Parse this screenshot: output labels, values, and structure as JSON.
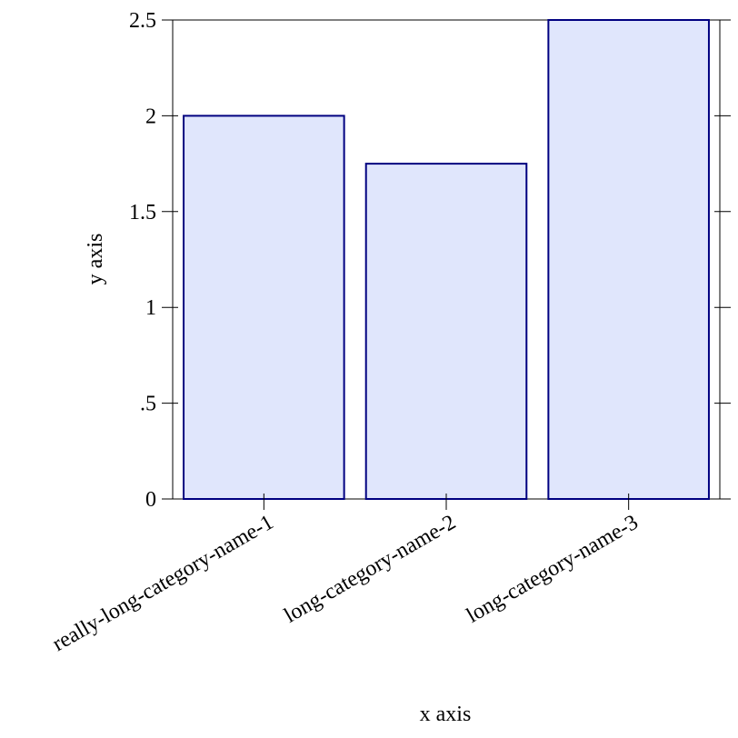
{
  "chart_data": {
    "type": "bar",
    "x_label": "x axis",
    "y_label": "y axis",
    "categories": [
      "really-long-category-name-1",
      "long-category-name-2",
      "long-category-name-3"
    ],
    "values": [
      2,
      1.75,
      2.5
    ],
    "color": "#e0e6fc",
    "edge_color": "#000080",
    "ylim": [
      0,
      2.5
    ],
    "yticks": [
      0,
      {
        "value": 0.5,
        "label": ".5"
      },
      1,
      1.5,
      2,
      2.5
    ]
  }
}
